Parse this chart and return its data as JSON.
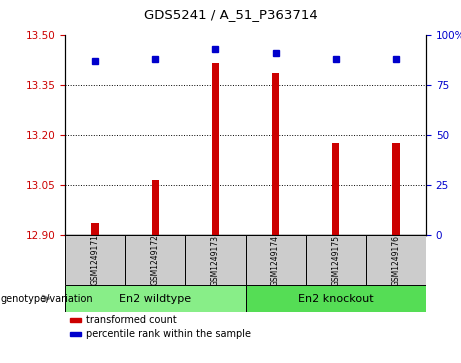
{
  "title": "GDS5241 / A_51_P363714",
  "samples": [
    "GSM1249171",
    "GSM1249172",
    "GSM1249173",
    "GSM1249174",
    "GSM1249175",
    "GSM1249176"
  ],
  "bar_values": [
    12.935,
    13.065,
    13.415,
    13.385,
    13.175,
    13.175
  ],
  "percentile_values": [
    87,
    88,
    93,
    91,
    88,
    88
  ],
  "ylim_left": [
    12.9,
    13.5
  ],
  "ylim_right": [
    0,
    100
  ],
  "yticks_left": [
    12.9,
    13.05,
    13.2,
    13.35,
    13.5
  ],
  "yticks_right": [
    0,
    25,
    50,
    75,
    100
  ],
  "bar_color": "#cc0000",
  "dot_color": "#0000cc",
  "bar_bottom": 12.9,
  "groups": [
    {
      "label": "En2 wildtype",
      "indices": [
        0,
        1,
        2
      ],
      "color": "#88ee88"
    },
    {
      "label": "En2 knockout",
      "indices": [
        3,
        4,
        5
      ],
      "color": "#55dd55"
    }
  ],
  "group_label_prefix": "genotype/variation",
  "legend_items": [
    {
      "color": "#cc0000",
      "label": "transformed count"
    },
    {
      "color": "#0000cc",
      "label": "percentile rank within the sample"
    }
  ],
  "sample_box_color": "#cccccc",
  "grid_color": "#000000",
  "grid_linestyle": "dotted",
  "bar_width": 0.12
}
